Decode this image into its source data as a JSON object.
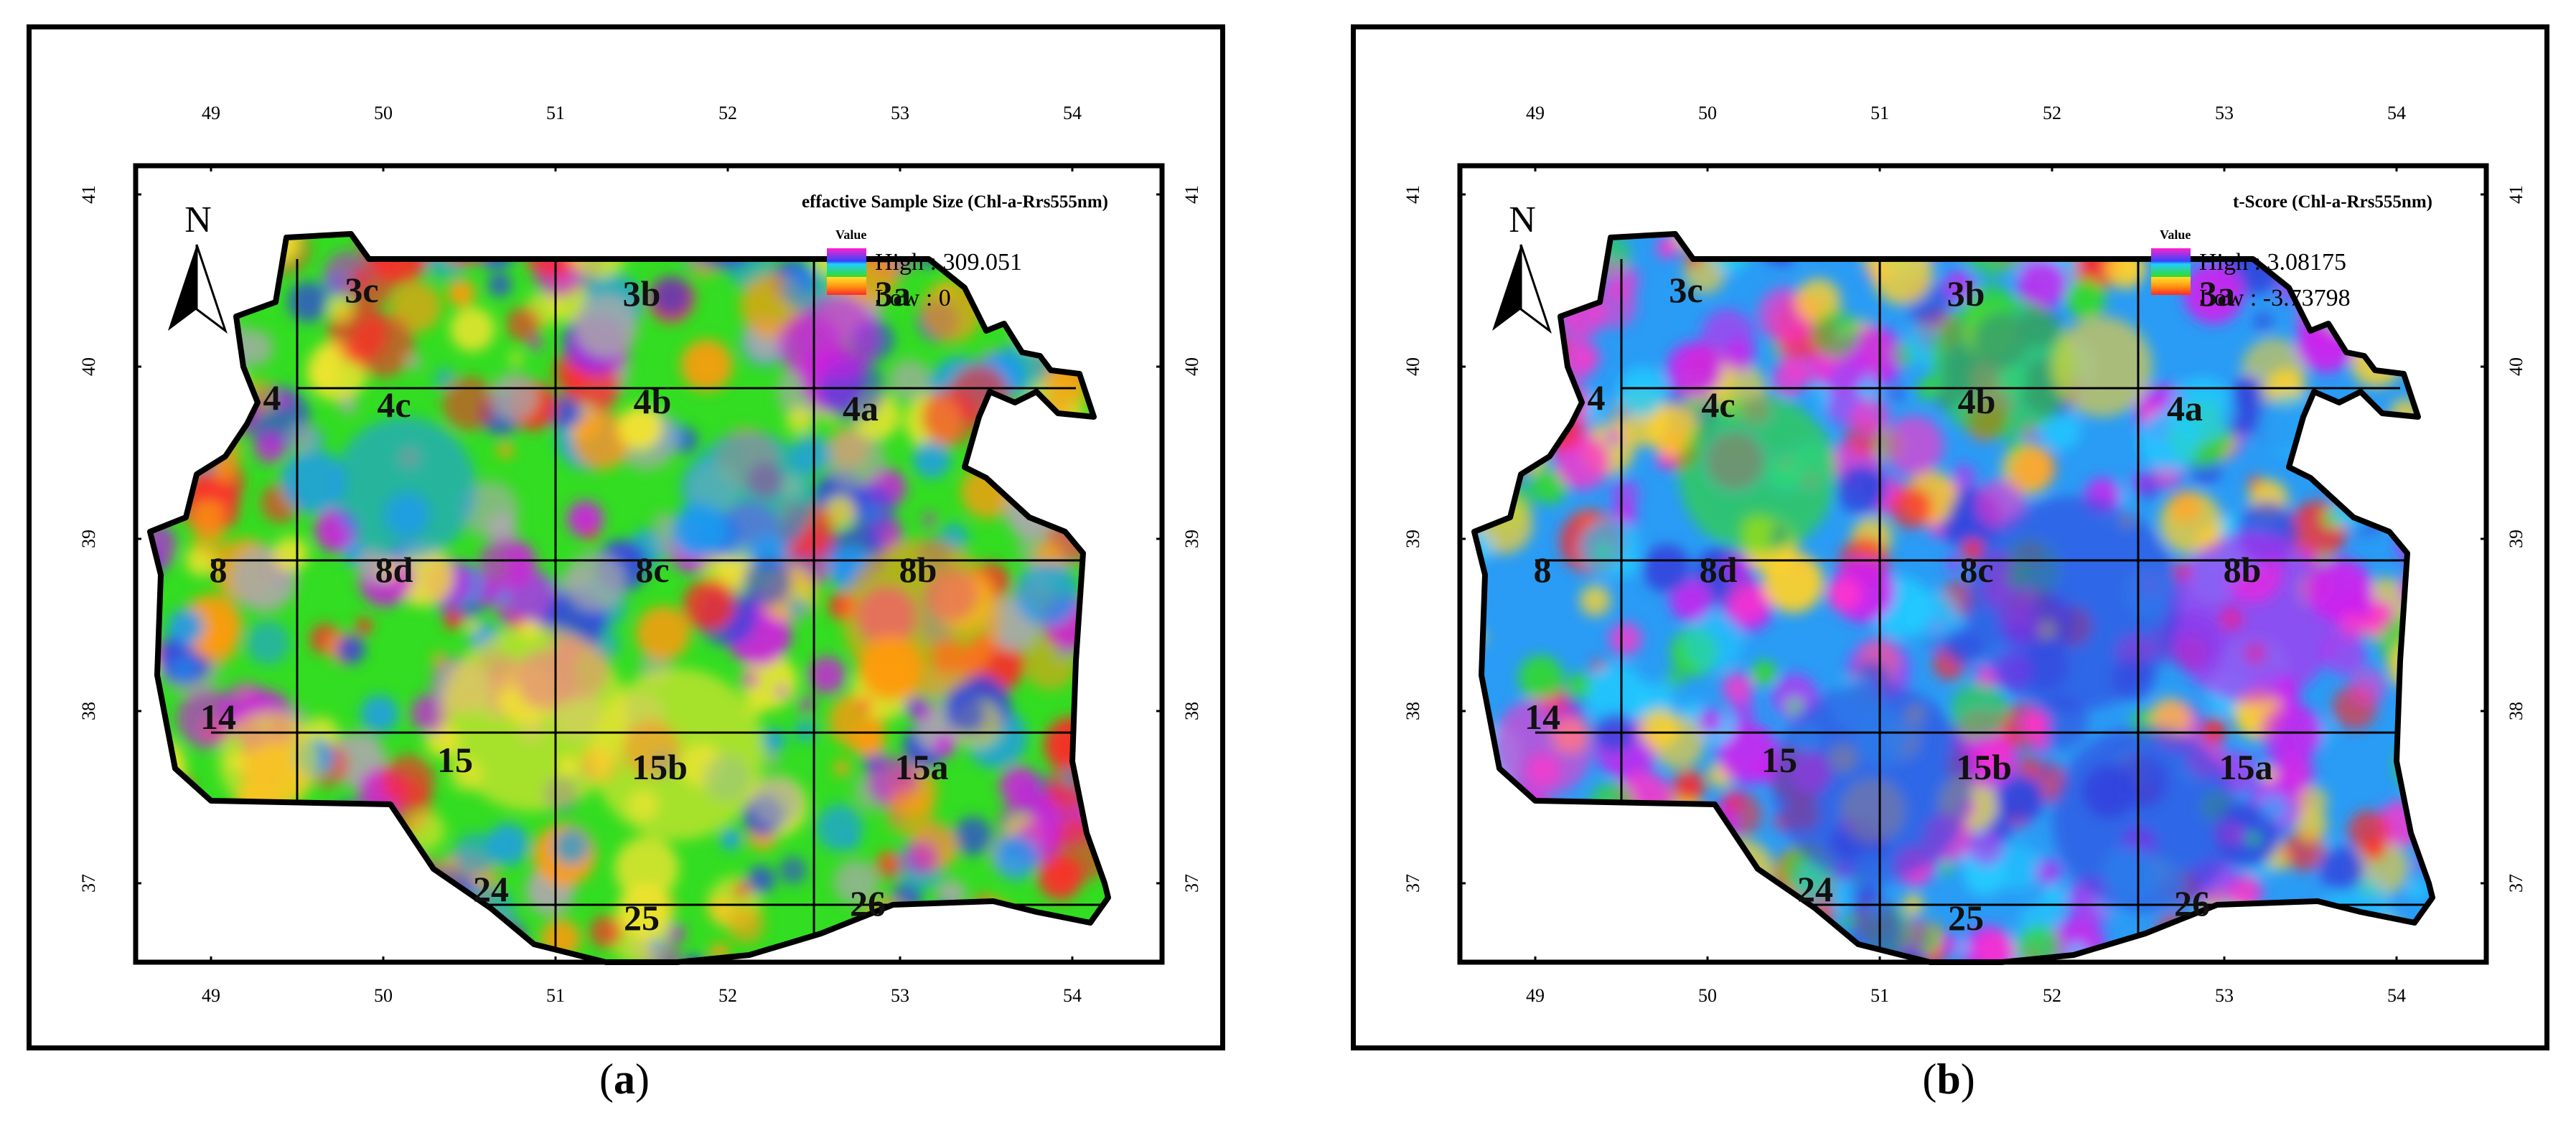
{
  "panels": [
    {
      "id": "a",
      "title": "effactive Sample Size (Chl-a-Rrs555nm)",
      "legend": {
        "heading": "Value",
        "high": "High : 309.051",
        "low": "Low : 0"
      },
      "colors": {
        "base": "#33dd22",
        "spots": [
          "#1e9af0",
          "#f4e430",
          "#ff9a10",
          "#3344dd",
          "#ff2a2a",
          "#cc22dd",
          "#aaaaaa"
        ]
      },
      "caption_letter": "a"
    },
    {
      "id": "b",
      "title": "t-Score (Chl-a-Rrs555nm)",
      "legend": {
        "heading": "Value",
        "high": "High : 3.08175",
        "low": "Low : -3.73798"
      },
      "colors": {
        "base": "#2a9cf5",
        "spots": [
          "#3344dd",
          "#22ccff",
          "#33dd22",
          "#ffd22a",
          "#ff2a2a",
          "#ff33cc",
          "#cc22ee"
        ]
      },
      "caption_letter": "b"
    }
  ],
  "north_label": "N",
  "lon_ticks": [
    "49",
    "50",
    "51",
    "52",
    "53",
    "54"
  ],
  "lat_ticks": [
    "41",
    "40",
    "39",
    "38",
    "37"
  ],
  "zones": [
    "3c",
    "3b",
    "3a",
    "4",
    "4c",
    "4b",
    "4a",
    "8",
    "8d",
    "8c",
    "8b",
    "14",
    "15",
    "15b",
    "15a",
    "24",
    "25",
    "26"
  ]
}
